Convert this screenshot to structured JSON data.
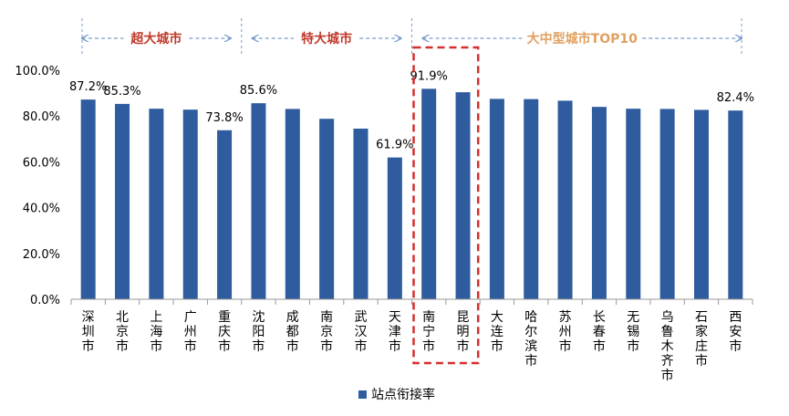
{
  "chart_data": {
    "type": "bar",
    "categories": [
      "深圳市",
      "北京市",
      "上海市",
      "广州市",
      "重庆市",
      "沈阳市",
      "成都市",
      "南京市",
      "武汉市",
      "天津市",
      "南宁市",
      "昆明市",
      "大连市",
      "哈尔滨市",
      "苏州市",
      "长春市",
      "无锡市",
      "乌鲁木齐市",
      "石家庄市",
      "西安市"
    ],
    "series": [
      {
        "name": "站点衔接率",
        "values": [
          87.2,
          85.3,
          83.2,
          82.8,
          73.8,
          85.6,
          83.1,
          78.8,
          74.5,
          61.9,
          91.9,
          90.4,
          87.5,
          87.4,
          86.7,
          84.0,
          83.2,
          83.1,
          82.7,
          82.4
        ]
      }
    ],
    "data_labels": [
      {
        "index": 0,
        "text": "87.2%"
      },
      {
        "index": 1,
        "text": "85.3%"
      },
      {
        "index": 4,
        "text": "73.8%"
      },
      {
        "index": 5,
        "text": "85.6%"
      },
      {
        "index": 9,
        "text": "61.9%"
      },
      {
        "index": 10,
        "text": "91.9%"
      },
      {
        "index": 19,
        "text": "82.4%"
      }
    ],
    "y_ticks": [
      "0.0%",
      "20.0%",
      "40.0%",
      "60.0%",
      "80.0%",
      "100.0%"
    ],
    "ylim": [
      0,
      100
    ],
    "groups": [
      {
        "label": "超大城市",
        "start": 0,
        "end": 4,
        "color": "#c0392b"
      },
      {
        "label": "特大城市",
        "start": 5,
        "end": 9,
        "color": "#c0392b"
      },
      {
        "label": "大中型城市TOP10",
        "start": 10,
        "end": 19,
        "color": "#e0a060"
      }
    ],
    "highlight": {
      "start": 10,
      "end": 11,
      "color": "#d32f2f"
    },
    "bar_color": "#2e5c9e",
    "legend_position": "bottom",
    "grid": false
  }
}
